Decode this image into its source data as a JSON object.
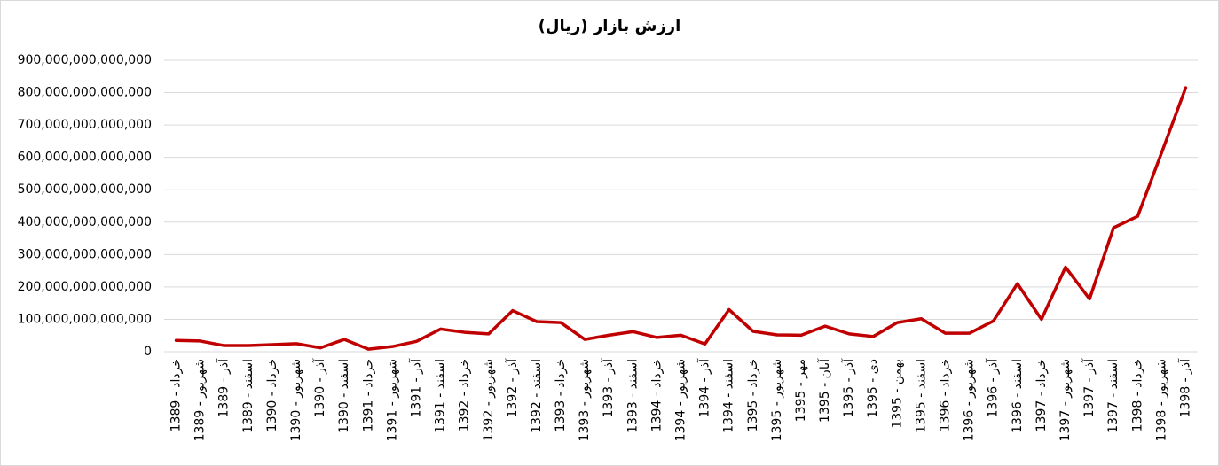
{
  "chart_data": {
    "type": "line",
    "title": "ارزش بازار (ریال)",
    "categories": [
      "خرداد - 1389",
      "شهریور - 1389",
      "آذر - 1389",
      "اسفند - 1389",
      "خرداد - 1390",
      "شهریور - 1390",
      "آذر - 1390",
      "اسفند - 1390",
      "خرداد - 1391",
      "شهریور - 1391",
      "آذر - 1391",
      "اسفند - 1391",
      "خرداد - 1392",
      "شهریور - 1392",
      "آذر - 1392",
      "اسفند - 1392",
      "خرداد - 1393",
      "شهریور - 1393",
      "آذر - 1393",
      "اسفند - 1393",
      "خرداد - 1394",
      "شهریور - 1394",
      "آذر - 1394",
      "اسفند - 1394",
      "خرداد - 1395",
      "شهریور - 1395",
      "مهر - 1395",
      "آبان - 1395",
      "آذر - 1395",
      "دی - 1395",
      "بهمن - 1395",
      "اسفند - 1395",
      "خرداد - 1396",
      "شهریور - 1396",
      "آذر - 1396",
      "اسفند - 1396",
      "خرداد - 1397",
      "شهریور - 1397",
      "آذر - 1397",
      "اسفند - 1397",
      "خرداد - 1398",
      "شهریور - 1398",
      "آذر - 1398"
    ],
    "series": [
      {
        "color": "#c00000",
        "values": [
          35000000000000,
          33000000000000,
          19000000000000,
          19000000000000,
          22000000000000,
          25000000000000,
          12000000000000,
          38000000000000,
          8000000000000,
          16000000000000,
          32000000000000,
          70000000000000,
          60000000000000,
          55000000000000,
          127000000000000,
          93000000000000,
          90000000000000,
          38000000000000,
          51000000000000,
          62000000000000,
          44000000000000,
          51000000000000,
          24000000000000,
          130000000000000,
          63000000000000,
          52000000000000,
          51000000000000,
          79000000000000,
          55000000000000,
          47000000000000,
          90000000000000,
          102000000000000,
          57000000000000,
          57000000000000,
          95000000000000,
          210000000000000,
          100000000000000,
          261000000000000,
          163000000000000,
          383000000000000,
          418000000000000,
          615000000000000,
          815000000000000
        ]
      }
    ],
    "ylim": [
      0,
      900000000000000
    ],
    "yticks": [
      {
        "value": 0,
        "label": "0"
      },
      {
        "value": 100000000000000,
        "label": "100,000,000,000,000"
      },
      {
        "value": 200000000000000,
        "label": "200,000,000,000,000"
      },
      {
        "value": 300000000000000,
        "label": "300,000,000,000,000"
      },
      {
        "value": 400000000000000,
        "label": "400,000,000,000,000"
      },
      {
        "value": 500000000000000,
        "label": "500,000,000,000,000"
      },
      {
        "value": 600000000000000,
        "label": "600,000,000,000,000"
      },
      {
        "value": 700000000000000,
        "label": "700,000,000,000,000"
      },
      {
        "value": 800000000000000,
        "label": "800,000,000,000,000"
      },
      {
        "value": 900000000000000,
        "label": "900,000,000,000,000"
      }
    ],
    "grid": true
  }
}
